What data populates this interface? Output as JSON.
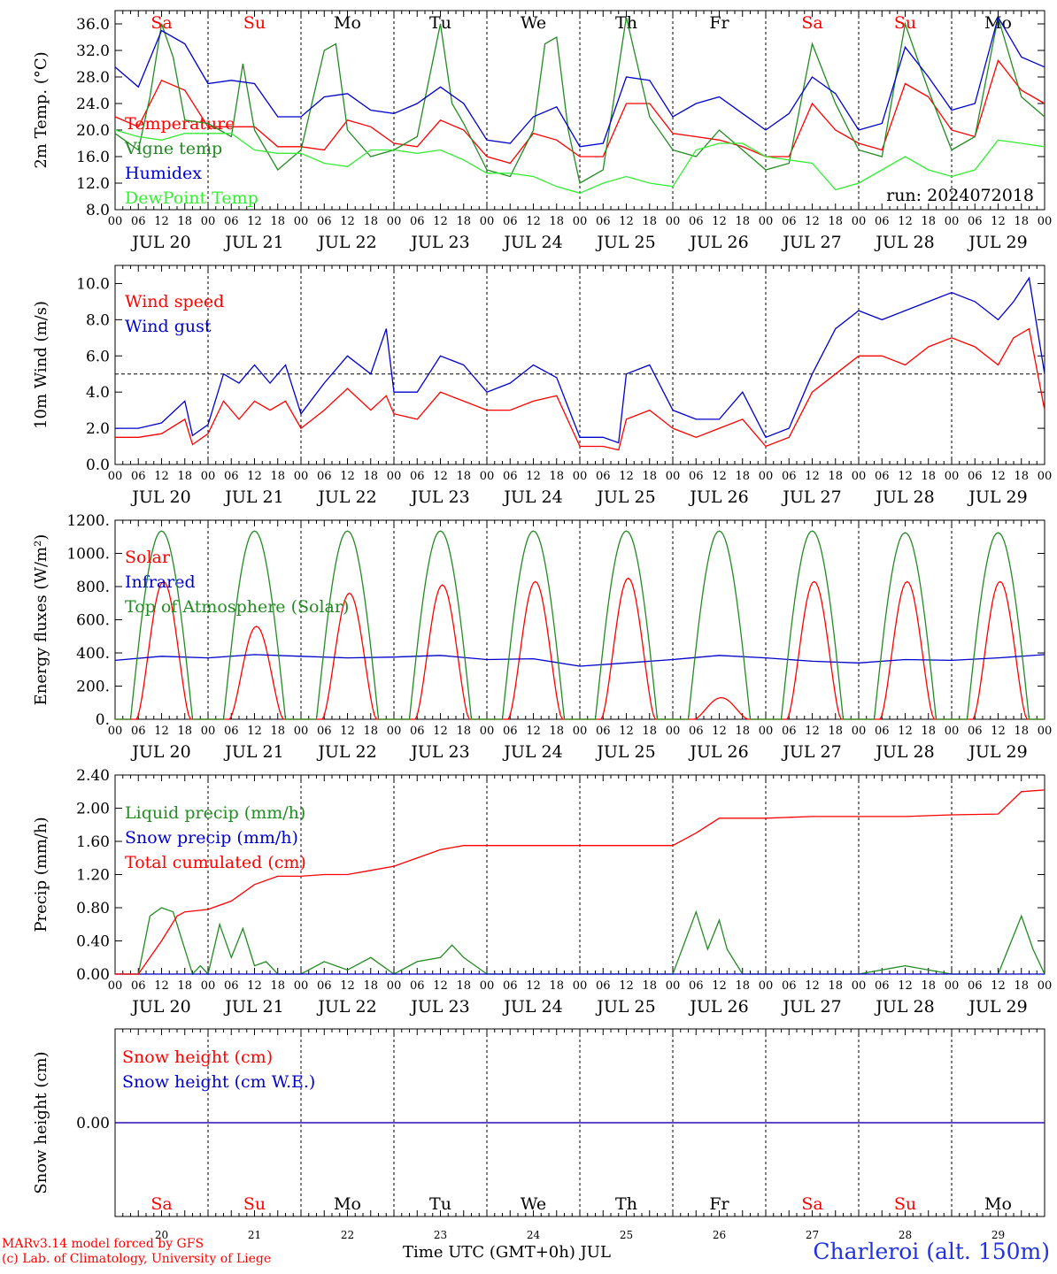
{
  "x_axis": {
    "day_labels": [
      "JUL 20",
      "JUL 21",
      "JUL 22",
      "JUL 23",
      "JUL 24",
      "JUL 25",
      "JUL 26",
      "JUL 27",
      "JUL 28",
      "JUL 29"
    ],
    "hour_labels": [
      "00",
      "06",
      "12",
      "18"
    ],
    "final_hour": "00",
    "weekdays": [
      "Sa",
      "Su",
      "Mo",
      "Tu",
      "We",
      "Th",
      "Fr",
      "Sa",
      "Su",
      "Mo"
    ],
    "weekday_colors": [
      "#ff0000",
      "#ff0000",
      "#000000",
      "#000000",
      "#000000",
      "#000000",
      "#000000",
      "#ff0000",
      "#ff0000",
      "#000000"
    ],
    "bottom_day_numbers": [
      "20",
      "21",
      "22",
      "23",
      "24",
      "25",
      "26",
      "27",
      "28",
      "29"
    ],
    "bottom_title": "Time UTC (GMT+0h) JUL"
  },
  "footer": {
    "credit1": "MARv3.14 model forced by GFS",
    "credit2": "(c) Lab. of Climatology, University of Liege",
    "station": "Charleroi (alt. 150m)"
  },
  "chart_data": [
    {
      "type": "line",
      "ylabel": "2m Temp. (°C)",
      "ylim": [
        8,
        38
      ],
      "yticks": [
        8,
        12,
        16,
        20,
        24,
        28,
        32,
        36
      ],
      "ytick_labels": [
        "8.0",
        "12.0",
        "16.0",
        "20.0",
        "24.0",
        "28.0",
        "32.0",
        "36.0"
      ],
      "annotation": "run: 2024072018",
      "x_units": "hours since JUL 20 00 UTC",
      "series": [
        {
          "name": "Temperature",
          "color": "#ff0000",
          "x": [
            0,
            6,
            12,
            18,
            24,
            30,
            36,
            42,
            48,
            54,
            60,
            66,
            72,
            78,
            84,
            90,
            96,
            102,
            108,
            114,
            120,
            126,
            132,
            138,
            144,
            150,
            156,
            162,
            168,
            174,
            180,
            186,
            192,
            198,
            204,
            210,
            216,
            222,
            228,
            234,
            240
          ],
          "y": [
            22,
            20.5,
            27.5,
            26,
            20.5,
            20.5,
            20.5,
            17.5,
            17.5,
            17,
            21.5,
            20.5,
            18,
            17.5,
            21.5,
            20,
            16,
            15,
            19.5,
            18.5,
            16,
            16,
            24,
            24,
            19.5,
            19,
            18.5,
            17.5,
            16,
            16,
            24,
            20,
            18,
            17,
            27,
            25,
            20,
            19,
            30.5,
            26,
            24
          ]
        },
        {
          "name": "Vigne temp",
          "color": "#228b22",
          "x": [
            0,
            6,
            9,
            12,
            15,
            18,
            24,
            30,
            33,
            36,
            42,
            48,
            54,
            57,
            60,
            66,
            72,
            78,
            84,
            87,
            90,
            96,
            102,
            108,
            111,
            114,
            117,
            120,
            126,
            132,
            138,
            144,
            150,
            156,
            162,
            168,
            174,
            180,
            186,
            192,
            198,
            204,
            210,
            216,
            222,
            228,
            234,
            240
          ],
          "y": [
            19.5,
            17,
            25,
            36,
            31,
            21.5,
            21,
            19,
            30,
            20,
            14,
            17,
            32,
            33,
            20,
            16,
            17,
            19,
            36,
            24,
            21,
            14,
            13,
            20,
            33,
            34,
            20,
            12,
            14,
            37,
            22,
            17,
            16,
            20,
            17,
            14,
            15,
            33,
            24,
            17,
            16,
            36,
            26,
            17,
            19,
            37,
            25,
            22
          ]
        },
        {
          "name": "Humidex",
          "color": "#0000cc",
          "x": [
            0,
            6,
            12,
            18,
            24,
            30,
            36,
            42,
            48,
            54,
            60,
            66,
            72,
            78,
            84,
            90,
            96,
            102,
            108,
            114,
            120,
            126,
            132,
            138,
            144,
            150,
            156,
            162,
            168,
            174,
            180,
            186,
            192,
            198,
            204,
            210,
            216,
            222,
            228,
            234,
            240
          ],
          "y": [
            29.5,
            26.5,
            35,
            33,
            27,
            27.5,
            27,
            22,
            22,
            25,
            25.5,
            23,
            22.5,
            24,
            26.5,
            24,
            18.5,
            18,
            22,
            23.5,
            17.5,
            18,
            28,
            27.5,
            22,
            24,
            25,
            22.5,
            20,
            22.5,
            28,
            25.5,
            20,
            21,
            32.5,
            28,
            23,
            24,
            37,
            31,
            29.5
          ]
        },
        {
          "name": "DewPoint Temp",
          "color": "#33ee33",
          "x": [
            0,
            6,
            12,
            18,
            24,
            30,
            36,
            42,
            48,
            54,
            60,
            66,
            72,
            78,
            84,
            90,
            96,
            102,
            108,
            114,
            120,
            126,
            132,
            138,
            144,
            150,
            156,
            162,
            168,
            174,
            180,
            186,
            192,
            198,
            204,
            210,
            216,
            222,
            228,
            234,
            240
          ],
          "y": [
            20,
            19,
            18.5,
            19.5,
            19.5,
            19.5,
            17,
            16.5,
            16.5,
            15,
            14.5,
            17,
            17,
            16.5,
            17,
            15.5,
            13.5,
            13.5,
            13,
            11.5,
            10.5,
            12,
            13,
            12,
            11.5,
            17,
            18,
            18,
            16,
            15.5,
            15,
            11,
            12,
            14,
            16,
            14,
            13,
            14,
            18.5,
            18,
            17.5
          ]
        }
      ]
    },
    {
      "type": "line",
      "ylabel": "10m Wind (m/s)",
      "ylim": [
        0,
        11
      ],
      "yticks": [
        0,
        2,
        4,
        6,
        8,
        10
      ],
      "ytick_labels": [
        "0.0",
        "2.0",
        "4.0",
        "6.0",
        "8.0",
        "10.0"
      ],
      "reference_line": 5,
      "x_units": "hours since JUL 20 00 UTC",
      "series": [
        {
          "name": "Wind speed",
          "color": "#ff0000",
          "x": [
            0,
            6,
            12,
            18,
            20,
            24,
            28,
            32,
            36,
            40,
            44,
            48,
            54,
            60,
            66,
            70,
            72,
            78,
            84,
            90,
            96,
            102,
            108,
            114,
            120,
            126,
            130,
            132,
            138,
            144,
            150,
            156,
            162,
            168,
            174,
            180,
            186,
            192,
            198,
            204,
            210,
            216,
            222,
            228,
            232,
            236,
            240
          ],
          "y": [
            1.5,
            1.5,
            1.7,
            2.5,
            1.1,
            1.7,
            3.5,
            2.5,
            3.5,
            3,
            3.5,
            2,
            3,
            4.2,
            3,
            3.8,
            2.8,
            2.5,
            4,
            3.5,
            3,
            3,
            3.5,
            3.8,
            1,
            1,
            0.8,
            2.5,
            3,
            2,
            1.5,
            2,
            2.5,
            1,
            1.5,
            4,
            5,
            6,
            6,
            5.5,
            6.5,
            7,
            6.5,
            5.5,
            7,
            7.5,
            3
          ]
        },
        {
          "name": "Wind gust",
          "color": "#0000cc",
          "x": [
            0,
            6,
            12,
            18,
            20,
            24,
            28,
            32,
            36,
            40,
            44,
            48,
            54,
            60,
            66,
            70,
            72,
            78,
            84,
            90,
            96,
            102,
            108,
            114,
            120,
            126,
            130,
            132,
            138,
            144,
            150,
            156,
            162,
            168,
            174,
            180,
            186,
            192,
            198,
            204,
            210,
            216,
            222,
            228,
            232,
            236,
            240
          ],
          "y": [
            2,
            2,
            2.3,
            3.5,
            1.6,
            2.2,
            5,
            4.5,
            5.5,
            4.5,
            5.5,
            2.8,
            4.5,
            6,
            5,
            7.5,
            4,
            4,
            6,
            5.5,
            4,
            4.5,
            5.5,
            4.8,
            1.5,
            1.5,
            1.2,
            5,
            5.5,
            3,
            2.5,
            2.5,
            4,
            1.5,
            2,
            5,
            7.5,
            8.5,
            8,
            8.5,
            9,
            9.5,
            9,
            8,
            9,
            10.3,
            5
          ]
        }
      ]
    },
    {
      "type": "line",
      "ylabel": "Energy fluxes (W/m²)",
      "ylim": [
        0,
        1200
      ],
      "yticks": [
        0,
        200,
        400,
        600,
        800,
        1000,
        1200
      ],
      "ytick_labels": [
        "0.",
        "200.",
        "400.",
        "600.",
        "800.",
        "1000.",
        "1200."
      ],
      "x_units": "hours since JUL 20 00 UTC",
      "series": [
        {
          "name": "Solar",
          "color": "#ff0000",
          "daily_peaks": [
            830,
            560,
            760,
            810,
            830,
            850,
            130,
            830,
            830,
            830
          ]
        },
        {
          "name": "Infrared",
          "color": "#0000cc",
          "x": [
            0,
            12,
            24,
            36,
            48,
            60,
            72,
            84,
            96,
            108,
            120,
            132,
            144,
            156,
            168,
            180,
            192,
            204,
            216,
            228,
            240
          ],
          "y": [
            355,
            380,
            370,
            390,
            380,
            370,
            375,
            385,
            360,
            365,
            320,
            340,
            360,
            385,
            370,
            350,
            340,
            360,
            355,
            370,
            390
          ]
        },
        {
          "name": "Top of Atmosphere (Solar)",
          "color": "#228b22",
          "daily_peaks": [
            1135,
            1135,
            1135,
            1135,
            1135,
            1135,
            1135,
            1135,
            1125,
            1125
          ]
        }
      ]
    },
    {
      "type": "line",
      "ylabel": "Precip (mm/h)",
      "ylim": [
        0,
        2.4
      ],
      "yticks": [
        0,
        0.4,
        0.8,
        1.2,
        1.6,
        2.0,
        2.4
      ],
      "ytick_labels": [
        "0.00",
        "0.40",
        "0.80",
        "1.20",
        "1.60",
        "2.00",
        "2.40"
      ],
      "x_units": "hours since JUL 20 00 UTC",
      "series": [
        {
          "name": "Liquid precip (mm/h)",
          "color": "#228b22",
          "x": [
            0,
            6,
            9,
            12,
            15,
            18,
            20,
            22,
            24,
            27,
            30,
            33,
            36,
            39,
            42,
            48,
            54,
            60,
            66,
            72,
            78,
            84,
            87,
            90,
            96,
            120,
            144,
            150,
            153,
            156,
            158,
            162,
            168,
            192,
            204,
            216,
            228,
            234,
            237,
            240
          ],
          "y": [
            0,
            0,
            0.7,
            0.8,
            0.75,
            0.3,
            0,
            0.1,
            0,
            0.6,
            0.2,
            0.55,
            0.1,
            0.15,
            0,
            0,
            0.15,
            0.05,
            0.2,
            0,
            0.15,
            0.2,
            0.35,
            0.2,
            0,
            0,
            0,
            0.75,
            0.3,
            0.65,
            0.3,
            0,
            0,
            0,
            0.1,
            0,
            0,
            0.7,
            0.3,
            0
          ]
        },
        {
          "name": "Snow precip (mm/h)",
          "color": "#0000cc",
          "x": [
            0,
            240
          ],
          "y": [
            0,
            0
          ]
        },
        {
          "name": "Total cumulated (cm)",
          "color": "#ff0000",
          "x": [
            0,
            6,
            12,
            16,
            18,
            24,
            30,
            36,
            42,
            48,
            54,
            60,
            66,
            72,
            78,
            84,
            90,
            96,
            108,
            120,
            132,
            144,
            150,
            156,
            168,
            180,
            192,
            204,
            216,
            228,
            234,
            240
          ],
          "y": [
            0,
            0,
            0.4,
            0.7,
            0.75,
            0.78,
            0.88,
            1.08,
            1.18,
            1.18,
            1.2,
            1.2,
            1.25,
            1.3,
            1.4,
            1.5,
            1.55,
            1.55,
            1.55,
            1.55,
            1.55,
            1.55,
            1.7,
            1.88,
            1.88,
            1.9,
            1.9,
            1.9,
            1.92,
            1.93,
            2.2,
            2.22
          ]
        }
      ]
    },
    {
      "type": "line",
      "ylabel": "Snow height (cm)",
      "ylim": [
        -1,
        1
      ],
      "yticks": [
        0
      ],
      "ytick_labels": [
        "0.00"
      ],
      "x_units": "hours since JUL 20 00 UTC",
      "series": [
        {
          "name": "Snow height (cm)",
          "color": "#ff0000",
          "x": [
            0,
            240
          ],
          "y": [
            0,
            0
          ]
        },
        {
          "name": "Snow height (cm W.E.)",
          "color": "#0000cc",
          "x": [
            0,
            240
          ],
          "y": [
            0,
            0
          ]
        }
      ]
    }
  ]
}
